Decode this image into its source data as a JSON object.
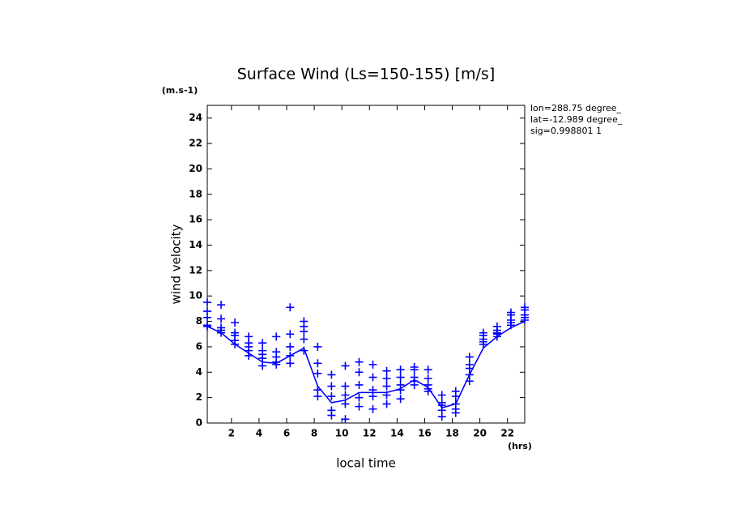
{
  "chart_data": {
    "type": "scatter",
    "title": "Surface Wind  (Ls=150-155) [m/s]",
    "y_unit": "(m.s-1)",
    "y_label": "wind velocity",
    "x_label": "local time",
    "x_unit": "(hrs)",
    "annotations": [
      "lon=288.75 degree_",
      "lat=-12.989 degree_",
      "sig=0.998801 1"
    ],
    "xlim": [
      0.25,
      23.25
    ],
    "ylim": [
      0,
      25
    ],
    "xticks": [
      2,
      4,
      6,
      8,
      10,
      12,
      14,
      16,
      18,
      20,
      22
    ],
    "yticks": [
      0,
      2,
      4,
      6,
      8,
      10,
      12,
      14,
      16,
      18,
      20,
      22,
      24
    ],
    "series": [
      {
        "type": "scatter",
        "color": "#0000ff",
        "x": [
          0.25,
          0.25,
          0.25,
          0.25,
          0.25,
          1.25,
          1.25,
          1.25,
          1.25,
          1.25,
          2.25,
          2.25,
          2.25,
          2.25,
          2.25,
          3.25,
          3.25,
          3.25,
          3.25,
          3.25,
          4.25,
          4.25,
          4.25,
          4.25,
          4.25,
          5.25,
          5.25,
          5.25,
          5.25,
          5.25,
          6.25,
          6.25,
          6.25,
          6.25,
          6.25,
          7.25,
          7.25,
          7.25,
          7.25,
          7.25,
          8.25,
          8.25,
          8.25,
          8.25,
          8.25,
          9.25,
          9.25,
          9.25,
          9.25,
          9.25,
          10.25,
          10.25,
          10.25,
          10.25,
          10.25,
          11.25,
          11.25,
          11.25,
          11.25,
          11.25,
          12.25,
          12.25,
          12.25,
          12.25,
          12.25,
          13.25,
          13.25,
          13.25,
          13.25,
          13.25,
          14.25,
          14.25,
          14.25,
          14.25,
          14.25,
          15.25,
          15.25,
          15.25,
          15.25,
          15.25,
          16.25,
          16.25,
          16.25,
          16.25,
          16.25,
          17.25,
          17.25,
          17.25,
          17.25,
          17.25,
          18.25,
          18.25,
          18.25,
          18.25,
          18.25,
          19.25,
          19.25,
          19.25,
          19.25,
          19.25,
          20.25,
          20.25,
          20.25,
          20.25,
          20.25,
          21.25,
          21.25,
          21.25,
          21.25,
          21.25,
          22.25,
          22.25,
          22.25,
          22.25,
          22.25,
          23.25,
          23.25,
          23.25,
          23.25,
          23.25
        ],
        "values": [
          9.5,
          8.8,
          8.3,
          7.7,
          7.6,
          9.3,
          8.2,
          7.5,
          7.3,
          7.1,
          7.9,
          7.1,
          6.9,
          6.5,
          6.2,
          6.8,
          6.3,
          6.0,
          5.7,
          5.3,
          6.3,
          5.7,
          5.4,
          5.1,
          4.5,
          6.8,
          5.6,
          5.2,
          4.8,
          4.6,
          9.1,
          7.0,
          6.0,
          5.3,
          4.7,
          8.0,
          7.6,
          7.2,
          6.6,
          5.7,
          6.0,
          4.7,
          3.9,
          2.6,
          2.1,
          3.8,
          2.9,
          2.1,
          1.0,
          0.6,
          4.5,
          2.9,
          2.2,
          1.5,
          0.3,
          4.8,
          4.0,
          3.0,
          2.0,
          1.3,
          4.6,
          3.6,
          2.6,
          2.1,
          1.1,
          4.1,
          3.5,
          2.9,
          2.2,
          1.5,
          4.2,
          3.6,
          3.0,
          2.6,
          1.9,
          4.4,
          4.2,
          3.6,
          3.3,
          3.0,
          4.2,
          3.5,
          3.0,
          2.7,
          2.5,
          2.2,
          1.6,
          1.4,
          1.0,
          0.5,
          2.5,
          2.1,
          1.5,
          1.1,
          0.8,
          5.2,
          4.6,
          4.3,
          3.8,
          3.3,
          7.1,
          6.9,
          6.6,
          6.4,
          6.2,
          7.6,
          7.3,
          7.1,
          7.0,
          6.8,
          8.7,
          8.5,
          8.1,
          7.9,
          7.7,
          9.1,
          8.9,
          8.5,
          8.3,
          8.1
        ]
      },
      {
        "type": "line",
        "color": "#0000ff",
        "x": [
          0.25,
          1.25,
          2.25,
          3.25,
          4.25,
          5.25,
          6.25,
          7.25,
          8.25,
          9.25,
          10.25,
          11.25,
          12.25,
          13.25,
          14.25,
          15.25,
          16.25,
          17.25,
          18.25,
          19.25,
          20.25,
          21.25,
          22.25,
          23.25
        ],
        "values": [
          7.6,
          7.1,
          6.2,
          5.5,
          4.8,
          4.7,
          5.3,
          5.9,
          2.9,
          1.6,
          1.8,
          2.4,
          2.4,
          2.4,
          2.7,
          3.4,
          2.8,
          1.2,
          1.5,
          3.8,
          5.9,
          6.8,
          7.5,
          8.0
        ]
      }
    ]
  }
}
